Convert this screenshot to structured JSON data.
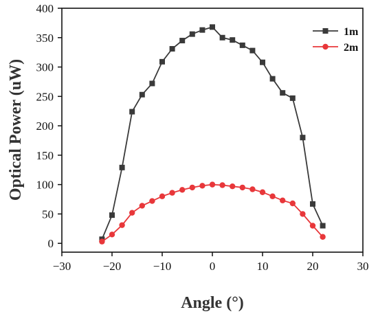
{
  "chart_data": {
    "type": "line",
    "title": "",
    "xlabel": "Angle (°)",
    "ylabel": "Optical Power (uW)",
    "xlim": [
      -30,
      30
    ],
    "ylim": [
      -15,
      400
    ],
    "xticks": [
      -30,
      -20,
      -10,
      0,
      10,
      20,
      30
    ],
    "yticks": [
      0,
      50,
      100,
      150,
      200,
      250,
      300,
      350,
      400
    ],
    "grid": false,
    "legend_position": "top-right",
    "series": [
      {
        "name": "1m",
        "color": "#3a3a3a",
        "marker": "square",
        "x": [
          -22,
          -20,
          -18,
          -16,
          -14,
          -12,
          -10,
          -8,
          -6,
          -4,
          -2,
          0,
          2,
          4,
          6,
          8,
          10,
          12,
          14,
          16,
          18,
          20,
          22
        ],
        "y": [
          7,
          48,
          129,
          224,
          253,
          272,
          309,
          331,
          345,
          356,
          363,
          368,
          350,
          346,
          337,
          328,
          308,
          280,
          256,
          247,
          180,
          67,
          30
        ]
      },
      {
        "name": "2m",
        "color": "#e8373a",
        "marker": "circle",
        "x": [
          -22,
          -20,
          -18,
          -16,
          -14,
          -12,
          -10,
          -8,
          -6,
          -4,
          -2,
          0,
          2,
          4,
          6,
          8,
          10,
          12,
          14,
          16,
          18,
          20,
          22
        ],
        "y": [
          3,
          15,
          31,
          52,
          64,
          72,
          80,
          86,
          91,
          95,
          98,
          100,
          99,
          97,
          95,
          92,
          87,
          80,
          73,
          68,
          50,
          30,
          11
        ]
      }
    ]
  }
}
